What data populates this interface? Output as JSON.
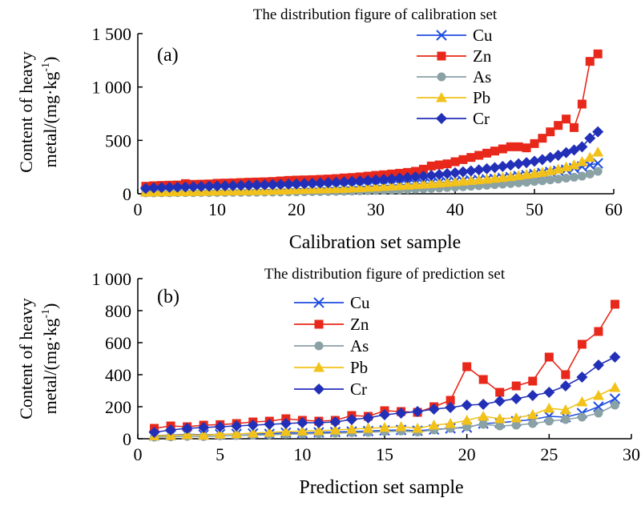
{
  "chart_data": [
    {
      "type": "line",
      "panel_label": "(a)",
      "title": "The distribution figure of calibration set",
      "xlabel": "Calibration set sample",
      "ylabel_lines": [
        "Content of heavy",
        "metal/(mg·kg",
        "-1",
        ")"
      ],
      "xlim": [
        0,
        60
      ],
      "ylim": [
        0,
        1500
      ],
      "xticks": [
        0,
        10,
        20,
        30,
        40,
        50,
        60
      ],
      "yticks": [
        0,
        500,
        1000,
        1500
      ],
      "ytick_labels": [
        "0",
        "500",
        "1 000",
        "1 500"
      ],
      "grid": false,
      "legend_position": "top-right",
      "x": [
        1,
        2,
        3,
        4,
        5,
        6,
        7,
        8,
        9,
        10,
        11,
        12,
        13,
        14,
        15,
        16,
        17,
        18,
        19,
        20,
        21,
        22,
        23,
        24,
        25,
        26,
        27,
        28,
        29,
        30,
        31,
        32,
        33,
        34,
        35,
        36,
        37,
        38,
        39,
        40,
        41,
        42,
        43,
        44,
        45,
        46,
        47,
        48,
        49,
        50,
        51,
        52,
        53,
        54,
        55,
        56,
        57,
        58
      ],
      "series": [
        {
          "name": "Cu",
          "color": "#1f4ee0",
          "marker": "x",
          "values": [
            20,
            22,
            25,
            24,
            26,
            28,
            27,
            30,
            29,
            31,
            32,
            33,
            34,
            35,
            36,
            38,
            40,
            42,
            44,
            46,
            48,
            50,
            52,
            55,
            58,
            60,
            63,
            66,
            70,
            73,
            76,
            80,
            84,
            88,
            92,
            96,
            100,
            105,
            110,
            115,
            120,
            125,
            130,
            135,
            140,
            148,
            156,
            165,
            175,
            185,
            195,
            205,
            215,
            225,
            240,
            255,
            270,
            285
          ]
        },
        {
          "name": "Zn",
          "color": "#e8281a",
          "marker": "square",
          "values": [
            70,
            75,
            78,
            80,
            82,
            95,
            88,
            90,
            92,
            98,
            100,
            102,
            105,
            108,
            110,
            112,
            115,
            120,
            125,
            128,
            130,
            132,
            135,
            138,
            142,
            148,
            152,
            158,
            165,
            172,
            178,
            185,
            192,
            200,
            210,
            230,
            260,
            270,
            280,
            300,
            320,
            340,
            360,
            380,
            400,
            420,
            440,
            440,
            430,
            470,
            520,
            580,
            640,
            700,
            620,
            840,
            1240,
            1310
          ]
        },
        {
          "name": "As",
          "color": "#8aa1a5",
          "marker": "circle",
          "values": [
            8,
            8,
            9,
            9,
            10,
            10,
            10,
            11,
            11,
            12,
            12,
            13,
            13,
            14,
            14,
            15,
            15,
            16,
            17,
            18,
            19,
            20,
            21,
            22,
            23,
            24,
            25,
            27,
            29,
            31,
            33,
            35,
            37,
            40,
            43,
            46,
            50,
            54,
            58,
            62,
            66,
            70,
            75,
            80,
            85,
            90,
            96,
            102,
            108,
            115,
            122,
            130,
            138,
            146,
            155,
            165,
            185,
            210
          ]
        },
        {
          "name": "Pb",
          "color": "#f2c21a",
          "marker": "triangle",
          "values": [
            15,
            16,
            17,
            18,
            19,
            20,
            21,
            22,
            23,
            24,
            25,
            26,
            27,
            28,
            29,
            30,
            32,
            34,
            36,
            38,
            40,
            42,
            44,
            46,
            48,
            50,
            53,
            56,
            60,
            64,
            68,
            72,
            76,
            80,
            85,
            90,
            95,
            100,
            106,
            112,
            118,
            124,
            130,
            137,
            144,
            152,
            160,
            170,
            180,
            190,
            200,
            215,
            230,
            250,
            270,
            300,
            340,
            390
          ]
        },
        {
          "name": "Cr",
          "color": "#2230b8",
          "marker": "diamond",
          "values": [
            50,
            55,
            58,
            60,
            62,
            64,
            66,
            68,
            70,
            72,
            74,
            76,
            78,
            80,
            82,
            84,
            86,
            88,
            90,
            92,
            95,
            98,
            101,
            104,
            108,
            112,
            116,
            120,
            125,
            130,
            135,
            140,
            146,
            152,
            158,
            165,
            172,
            180,
            188,
            196,
            205,
            214,
            224,
            234,
            245,
            256,
            268,
            280,
            292,
            305,
            320,
            340,
            360,
            385,
            410,
            440,
            520,
            580
          ]
        }
      ]
    },
    {
      "type": "line",
      "panel_label": "(b)",
      "title": "The distribution figure of prediction set",
      "xlabel": "Prediction set sample",
      "ylabel_lines": [
        "Content of heavy",
        "metal/(mg·kg",
        "-1",
        ")"
      ],
      "xlim": [
        0,
        30
      ],
      "ylim": [
        0,
        1000
      ],
      "xticks": [
        0,
        5,
        10,
        15,
        20,
        25,
        30
      ],
      "yticks": [
        0,
        200,
        400,
        600,
        800,
        1000
      ],
      "ytick_labels": [
        "0",
        "200",
        "400",
        "600",
        "800",
        "1 000"
      ],
      "grid": false,
      "legend_position": "center",
      "x": [
        1,
        2,
        3,
        4,
        5,
        6,
        7,
        8,
        9,
        10,
        11,
        12,
        13,
        14,
        15,
        16,
        17,
        18,
        19,
        20,
        21,
        22,
        23,
        24,
        25,
        26,
        27,
        28,
        29
      ],
      "series": [
        {
          "name": "Cu",
          "color": "#1f4ee0",
          "marker": "x",
          "values": [
            20,
            22,
            28,
            25,
            28,
            30,
            32,
            30,
            38,
            35,
            40,
            42,
            45,
            48,
            52,
            55,
            50,
            58,
            65,
            70,
            95,
            100,
            110,
            120,
            140,
            135,
            160,
            200,
            250
          ]
        },
        {
          "name": "Zn",
          "color": "#e8281a",
          "marker": "square",
          "values": [
            65,
            80,
            75,
            85,
            88,
            95,
            105,
            110,
            125,
            115,
            110,
            115,
            145,
            140,
            175,
            170,
            165,
            200,
            240,
            450,
            370,
            290,
            330,
            360,
            510,
            400,
            590,
            670,
            840
          ]
        },
        {
          "name": "As",
          "color": "#8aa1a5",
          "marker": "circle",
          "values": [
            10,
            12,
            15,
            14,
            18,
            20,
            22,
            25,
            28,
            30,
            32,
            35,
            38,
            40,
            45,
            48,
            42,
            55,
            65,
            75,
            90,
            80,
            85,
            95,
            110,
            120,
            135,
            160,
            210
          ]
        },
        {
          "name": "Pb",
          "color": "#f2c21a",
          "marker": "triangle",
          "values": [
            18,
            20,
            25,
            22,
            28,
            30,
            35,
            40,
            45,
            48,
            50,
            55,
            60,
            65,
            70,
            75,
            65,
            85,
            95,
            115,
            140,
            125,
            130,
            150,
            190,
            180,
            230,
            270,
            320
          ]
        },
        {
          "name": "Cr",
          "color": "#2230b8",
          "marker": "diamond",
          "values": [
            40,
            55,
            65,
            70,
            75,
            80,
            85,
            90,
            95,
            100,
            100,
            105,
            120,
            130,
            150,
            160,
            170,
            185,
            195,
            210,
            215,
            235,
            250,
            270,
            290,
            330,
            385,
            460,
            510
          ]
        }
      ]
    }
  ]
}
